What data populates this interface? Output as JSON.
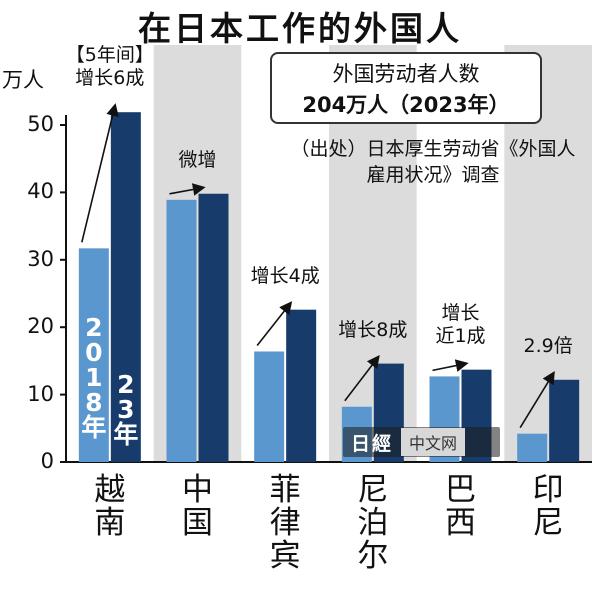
{
  "chart_data": {
    "type": "bar",
    "title": "在日本工作的外国人",
    "unit": "万人",
    "ylim": [
      0,
      55
    ],
    "yticks": [
      "0",
      "10",
      "20",
      "30",
      "40",
      "50"
    ],
    "categories": [
      "越南",
      "中国",
      "菲律宾",
      "尼泊尔",
      "巴西",
      "印尼"
    ],
    "series": [
      {
        "name": "2018年",
        "values": [
          31.7,
          38.9,
          16.4,
          8.2,
          12.7,
          4.2
        ]
      },
      {
        "name": "23年",
        "values": [
          51.9,
          39.8,
          22.6,
          14.6,
          13.7,
          12.2
        ]
      }
    ],
    "series_colors": [
      "#5b97cf",
      "#173c6b"
    ],
    "annotations": [
      "【5年间】\n增长6成",
      "微增",
      "增长4成",
      "增长8成",
      "增长\n近1成",
      "2.9倍"
    ],
    "infobox": {
      "line1": "外国劳动者人数",
      "line2": "204万人（2023年）"
    },
    "source": "（出处）日本厚生劳动省《外国人\n雇用状况》调查",
    "watermark": {
      "logo": "日經",
      "brand": "中文网"
    },
    "grid": false
  }
}
